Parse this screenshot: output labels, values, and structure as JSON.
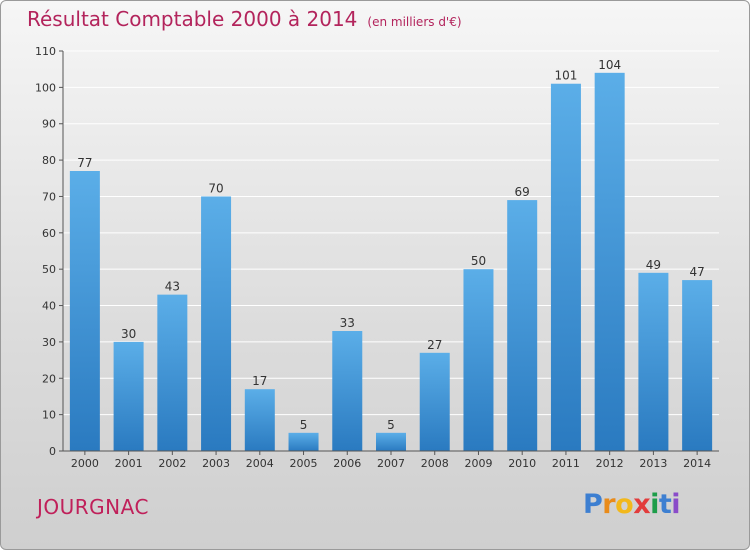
{
  "header": {
    "title": "Résultat Comptable 2000 à 2014",
    "unit": "(en milliers d'€)"
  },
  "footer": {
    "commune": "JOURGNAC",
    "logo_letters": [
      "P",
      "r",
      "o",
      "x",
      "i",
      "t",
      "i"
    ],
    "logo_colors": [
      "#3d7fd1",
      "#e98b1a",
      "#f2b81c",
      "#e23c3c",
      "#1d9d4a",
      "#3d7fd1",
      "#8a4cc9"
    ]
  },
  "chart_data": {
    "type": "bar",
    "categories": [
      "2000",
      "2001",
      "2002",
      "2003",
      "2004",
      "2005",
      "2006",
      "2007",
      "2008",
      "2009",
      "2010",
      "2011",
      "2012",
      "2013",
      "2014"
    ],
    "values": [
      77,
      30,
      43,
      70,
      17,
      5,
      33,
      5,
      27,
      50,
      69,
      101,
      104,
      49,
      47
    ],
    "ylim": [
      0,
      110
    ],
    "yticks": [
      0,
      10,
      20,
      30,
      40,
      50,
      60,
      70,
      80,
      90,
      100,
      110
    ],
    "grid": true,
    "bar_color_top": "#5baee8",
    "bar_color_bottom": "#2a7ac0"
  }
}
